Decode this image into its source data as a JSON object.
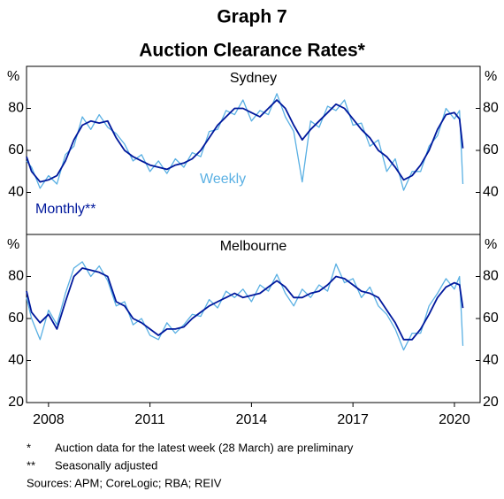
{
  "header": {
    "title": "Graph 7",
    "subtitle": "Auction Clearance Rates*"
  },
  "footer": {
    "notes": [
      {
        "marker": "*",
        "text": "Auction data for the latest week (28 March) are preliminary"
      },
      {
        "marker": "**",
        "text": "Seasonally adjusted"
      }
    ],
    "sources": "Sources: APM; CoreLogic; RBA; REIV"
  },
  "chart_data": [
    {
      "type": "line",
      "title": "Sydney",
      "y_unit": "%",
      "xlim": [
        2007.35,
        2020.76
      ],
      "ylim": [
        20,
        100
      ],
      "yticks": [
        40,
        60,
        80
      ],
      "x": [
        2007.35,
        2007.5,
        2007.75,
        2008,
        2008.25,
        2008.5,
        2008.75,
        2009,
        2009.25,
        2009.5,
        2009.75,
        2010,
        2010.25,
        2010.5,
        2010.75,
        2011,
        2011.25,
        2011.5,
        2011.75,
        2012,
        2012.25,
        2012.5,
        2012.75,
        2013,
        2013.25,
        2013.5,
        2013.75,
        2014,
        2014.25,
        2014.5,
        2014.75,
        2015,
        2015.25,
        2015.5,
        2015.75,
        2016,
        2016.25,
        2016.5,
        2016.75,
        2017,
        2017.25,
        2017.5,
        2017.75,
        2018,
        2018.25,
        2018.5,
        2018.75,
        2019,
        2019.25,
        2019.5,
        2019.75,
        2020,
        2020.15,
        2020.25
      ],
      "series": [
        {
          "name": "Weekly",
          "color": "#5ab0e3",
          "values": [
            55,
            52,
            42,
            48,
            44,
            58,
            62,
            76,
            70,
            77,
            71,
            68,
            63,
            55,
            58,
            50,
            55,
            49,
            56,
            52,
            59,
            57,
            69,
            70,
            79,
            77,
            84,
            74,
            79,
            77,
            87,
            76,
            69,
            45,
            74,
            71,
            81,
            79,
            84,
            72,
            73,
            62,
            65,
            50,
            56,
            41,
            50,
            50,
            62,
            67,
            80,
            75,
            79,
            44
          ]
        },
        {
          "name": "Monthly**",
          "color": "#00189c",
          "values": [
            57,
            50,
            45,
            46,
            48,
            55,
            65,
            72,
            74,
            73,
            74,
            66,
            60,
            57,
            55,
            53,
            52,
            51,
            53,
            54,
            56,
            60,
            66,
            72,
            76,
            80,
            80,
            78,
            76,
            80,
            84,
            80,
            72,
            65,
            70,
            74,
            78,
            82,
            80,
            75,
            70,
            66,
            60,
            57,
            52,
            46,
            48,
            53,
            60,
            70,
            77,
            78,
            75,
            61
          ]
        }
      ]
    },
    {
      "type": "line",
      "title": "Melbourne",
      "y_unit": "%",
      "xlim": [
        2007.35,
        2020.76
      ],
      "ylim": [
        20,
        100
      ],
      "yticks": [
        20,
        40,
        60,
        80
      ],
      "xticks": [
        2008,
        2011,
        2014,
        2017,
        2020
      ],
      "x": [
        2007.35,
        2007.5,
        2007.75,
        2008,
        2008.25,
        2008.5,
        2008.75,
        2009,
        2009.25,
        2009.5,
        2009.75,
        2010,
        2010.25,
        2010.5,
        2010.75,
        2011,
        2011.25,
        2011.5,
        2011.75,
        2012,
        2012.25,
        2012.5,
        2012.75,
        2013,
        2013.25,
        2013.5,
        2013.75,
        2014,
        2014.25,
        2014.5,
        2014.75,
        2015,
        2015.25,
        2015.5,
        2015.75,
        2016,
        2016.25,
        2016.5,
        2016.75,
        2017,
        2017.25,
        2017.5,
        2017.75,
        2018,
        2018.25,
        2018.5,
        2018.75,
        2019,
        2019.25,
        2019.5,
        2019.75,
        2020,
        2020.15,
        2020.25
      ],
      "series": [
        {
          "color": "#5ab0e3",
          "values": [
            70,
            60,
            50,
            64,
            57,
            72,
            84,
            87,
            80,
            85,
            78,
            66,
            68,
            57,
            60,
            52,
            50,
            58,
            53,
            57,
            62,
            61,
            69,
            65,
            73,
            70,
            74,
            68,
            76,
            73,
            81,
            72,
            66,
            74,
            70,
            76,
            73,
            86,
            77,
            79,
            70,
            75,
            66,
            62,
            55,
            45,
            53,
            53,
            66,
            72,
            79,
            74,
            80,
            47
          ]
        },
        {
          "color": "#00189c",
          "values": [
            73,
            63,
            58,
            62,
            55,
            68,
            80,
            84,
            83,
            82,
            80,
            68,
            66,
            60,
            58,
            55,
            52,
            55,
            55,
            56,
            60,
            63,
            66,
            68,
            70,
            72,
            70,
            71,
            72,
            75,
            78,
            75,
            70,
            70,
            72,
            73,
            76,
            80,
            79,
            76,
            73,
            72,
            70,
            64,
            58,
            50,
            50,
            55,
            62,
            70,
            75,
            77,
            76,
            65
          ]
        }
      ]
    }
  ]
}
